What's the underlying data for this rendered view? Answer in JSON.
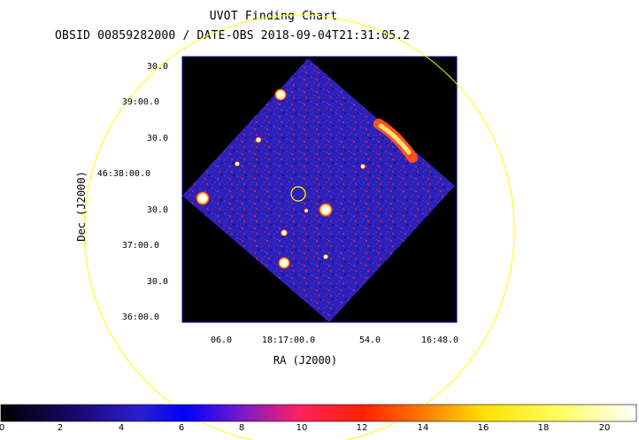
{
  "title": "UVOT Finding Chart",
  "subtitle": "OBSID 00859282000 / DATE-OBS 2018-09-04T21:31:05.2",
  "axes": {
    "x_title": "RA (J2000)",
    "y_title": "Dec (J2000)",
    "x_ticks": [
      "06.0",
      "18:17:00.0",
      "54.0",
      "16:48.0"
    ],
    "y_ticks": [
      "30.0",
      "39:00.0",
      "30.0",
      "46:38:00.0",
      "30.0",
      "37:00.0",
      "30.0",
      "36:00.0"
    ]
  },
  "colorbar": {
    "ticks": [
      "0",
      "2",
      "4",
      "6",
      "8",
      "10",
      "12",
      "14",
      "16",
      "18",
      "20"
    ],
    "range": [
      0,
      21
    ],
    "colors": [
      "#000000",
      "#1a0870",
      "#2a1fd0",
      "#0000ff",
      "#7a1ac8",
      "#ff2060",
      "#ff2000",
      "#ff8000",
      "#ffe000",
      "#ffff60",
      "#ffffff"
    ]
  },
  "colors": {
    "field_circle": "#ffff00",
    "target_marker": "#ffff00",
    "image_background": "#000000",
    "detector": "#2a22b8",
    "frame": "#0000aa"
  }
}
